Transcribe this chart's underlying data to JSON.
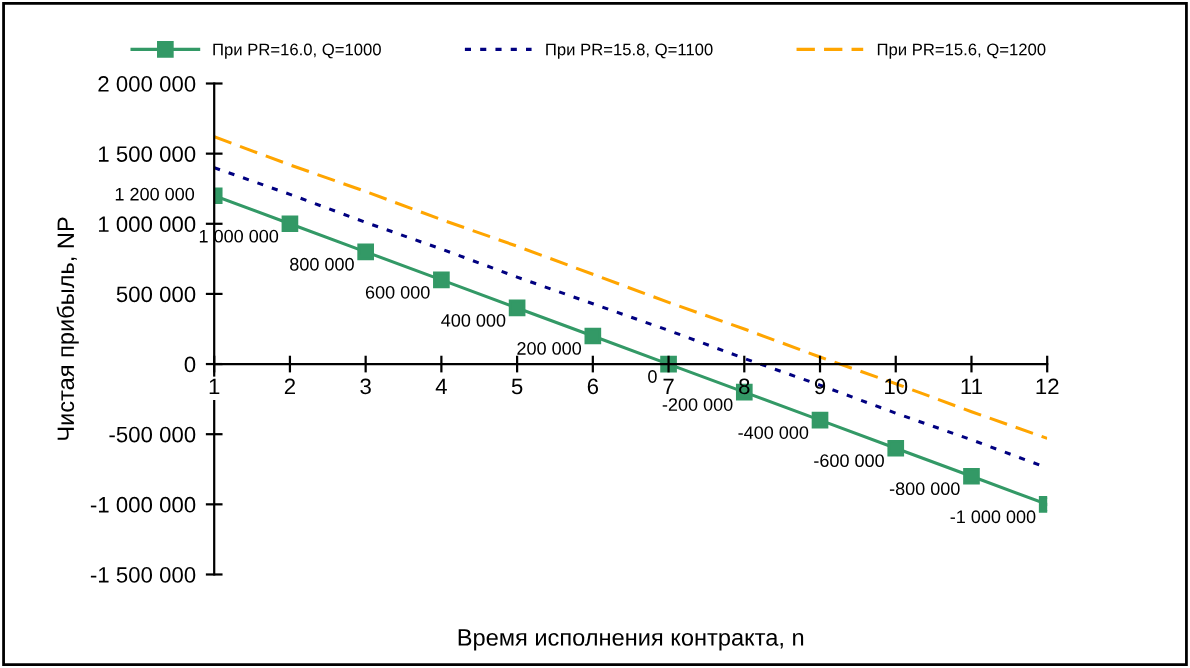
{
  "chart_data": {
    "type": "line",
    "xlabel": "Время исполнения контракта, n",
    "ylabel": "Чистая прибыль, NP",
    "x": [
      1,
      2,
      3,
      4,
      5,
      6,
      7,
      8,
      9,
      10,
      11,
      12
    ],
    "series": [
      {
        "name": "При PR=16.0, Q=1000",
        "color": "#339966",
        "marker": "square",
        "line_style": "solid",
        "values": [
          1200000,
          1000000,
          800000,
          600000,
          400000,
          200000,
          0,
          -200000,
          -400000,
          -600000,
          -800000,
          -1000000
        ],
        "value_labels": [
          "1 200 000",
          "1 000 000",
          "800 000",
          "600 000",
          "400 000",
          "200 000",
          "0",
          "-200 000",
          "-400 000",
          "-600 000",
          "-800 000",
          "-1 000 000"
        ]
      },
      {
        "name": "При PR=15.8, Q=1100",
        "color": "#000080",
        "marker": "none",
        "line_style": "dotted",
        "values": [
          1400000,
          1210000,
          1010000,
          820000,
          620000,
          430000,
          240000,
          40000,
          -150000,
          -350000,
          -540000,
          -740000
        ]
      },
      {
        "name": "При PR=15.6, Q=1200",
        "color": "#ffa500",
        "marker": "none",
        "line_style": "dashed",
        "values": [
          1620000,
          1420000,
          1230000,
          1030000,
          840000,
          640000,
          440000,
          250000,
          50000,
          -140000,
          -340000,
          -530000
        ]
      }
    ],
    "xlim": [
      1,
      12
    ],
    "xticks": [
      1,
      2,
      3,
      4,
      5,
      6,
      7,
      8,
      9,
      10,
      11,
      12
    ],
    "ylim": [
      -1500000,
      2000000
    ],
    "yticks": [
      {
        "value": -1500000,
        "label": "-1 500 000"
      },
      {
        "value": -1000000,
        "label": "-1 000 000"
      },
      {
        "value": -500000,
        "label": "-500 000"
      },
      0,
      {
        "value": 500000,
        "label": "500 000"
      },
      {
        "value": 1000000,
        "label": "1 000 000"
      },
      {
        "value": 1500000,
        "label": "1 500 000"
      },
      {
        "value": 2000000,
        "label": "2 000 000"
      }
    ],
    "legend": "top",
    "grid": false
  }
}
